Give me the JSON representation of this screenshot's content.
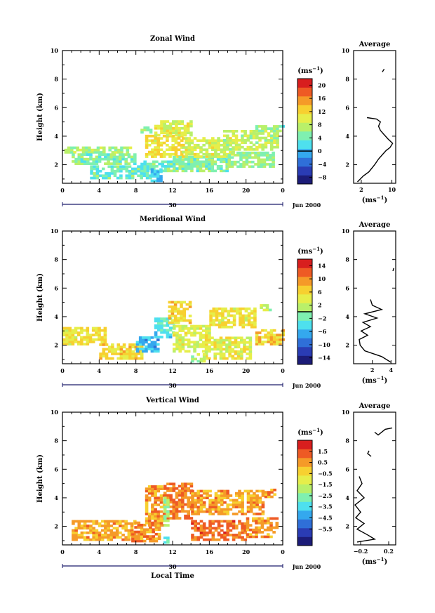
{
  "colors": {
    "scale": [
      "#1c1c78",
      "#2a3cb4",
      "#2f6fd8",
      "#34a8ee",
      "#4ee0ee",
      "#7ff0b0",
      "#b9f06a",
      "#e6ee4a",
      "#f7d030",
      "#f59a28",
      "#ee5a24",
      "#d81e1e"
    ]
  },
  "chart_data": [
    {
      "type": "heatmap",
      "title": "Zonal Wind",
      "xlabel": "",
      "ylabel": "Height (km)",
      "xlim": [
        0,
        24
      ],
      "ylim": [
        0.7,
        10
      ],
      "xticks": [
        "0",
        "4",
        "8",
        "12",
        "16",
        "20",
        "0"
      ],
      "yticks": [
        "2",
        "4",
        "6",
        "8",
        "10"
      ],
      "date_axis": {
        "day_label": "30",
        "month_label": "Jun 2000"
      },
      "colorbar": {
        "unit": "(ms",
        "unit_exp": "−1",
        "unit_close": ")",
        "range": [
          -10,
          22
        ],
        "ticks": [
          "20",
          "16",
          "12",
          "8",
          "4",
          "0",
          "−4",
          "−8"
        ],
        "ref_value": 0
      },
      "field_patches": [
        {
          "t0": 0.2,
          "t1": 7.5,
          "h0": 2.8,
          "h1": 3.2,
          "v": 7
        },
        {
          "t0": 1.0,
          "t1": 8.0,
          "h0": 2.0,
          "h1": 2.7,
          "v": 5
        },
        {
          "t0": 3.0,
          "t1": 9.5,
          "h0": 1.0,
          "h1": 1.8,
          "v": 4
        },
        {
          "t0": 8.5,
          "t1": 12.0,
          "h0": 1.5,
          "h1": 2.3,
          "v": 4
        },
        {
          "t0": 9.6,
          "t1": 10.8,
          "h0": 0.8,
          "h1": 1.6,
          "v": 1
        },
        {
          "t0": 9.0,
          "t1": 13.0,
          "h0": 2.5,
          "h1": 4.0,
          "v": 11
        },
        {
          "t0": 10.0,
          "t1": 14.0,
          "h0": 4.0,
          "h1": 5.0,
          "v": 9
        },
        {
          "t0": 12.0,
          "t1": 18.0,
          "h0": 1.5,
          "h1": 2.6,
          "v": 5
        },
        {
          "t0": 13.0,
          "t1": 18.5,
          "h0": 2.5,
          "h1": 3.8,
          "v": 9
        },
        {
          "t0": 17.5,
          "t1": 23.5,
          "h0": 3.0,
          "h1": 4.4,
          "v": 8
        },
        {
          "t0": 18.0,
          "t1": 23.0,
          "h0": 1.8,
          "h1": 2.8,
          "v": 6
        },
        {
          "t0": 21.0,
          "t1": 24.0,
          "h0": 4.3,
          "h1": 4.7,
          "v": 5
        },
        {
          "t0": 8.5,
          "t1": 9.5,
          "h0": 4.2,
          "h1": 4.6,
          "v": 6
        }
      ],
      "profile": {
        "title": "Average",
        "xlabel": "(ms",
        "xlabel_exp": "−1",
        "xlabel_close": ")",
        "xlim": [
          0,
          11
        ],
        "xticks": [
          "2",
          "10"
        ],
        "xtick_values": [
          2,
          10
        ],
        "segments": [
          [
            [
              1.0,
              0.8
            ],
            [
              2.5,
              1.2
            ],
            [
              4.0,
              1.5
            ],
            [
              5.5,
              2.0
            ],
            [
              6.5,
              2.4
            ],
            [
              7.5,
              2.7
            ],
            [
              8.5,
              3.0
            ],
            [
              9.5,
              3.2
            ],
            [
              10.2,
              3.5
            ],
            [
              9.0,
              3.8
            ],
            [
              8.0,
              4.1
            ],
            [
              7.0,
              4.4
            ],
            [
              6.5,
              4.7
            ],
            [
              7.0,
              5.0
            ],
            [
              6.0,
              5.2
            ],
            [
              3.5,
              5.3
            ]
          ],
          [
            [
              7.5,
              8.5
            ],
            [
              8.0,
              8.7
            ]
          ]
        ]
      }
    },
    {
      "type": "heatmap",
      "title": "Meridional Wind",
      "xlabel": "",
      "ylabel": "Height (km)",
      "xlim": [
        0,
        24
      ],
      "ylim": [
        0.7,
        10
      ],
      "xticks": [
        "0",
        "4",
        "8",
        "12",
        "16",
        "20",
        "0"
      ],
      "yticks": [
        "2",
        "4",
        "6",
        "8",
        "10"
      ],
      "date_axis": {
        "day_label": "30",
        "month_label": "Jun 2000"
      },
      "colorbar": {
        "unit": "(ms",
        "unit_exp": "−1",
        "unit_close": ")",
        "range": [
          -16,
          16
        ],
        "ticks": [
          "14",
          "10",
          "6",
          "2",
          "−2",
          "−6",
          "−10",
          "−14"
        ],
        "ref_value": 0
      },
      "field_patches": [
        {
          "t0": 0.0,
          "t1": 4.5,
          "h0": 2.0,
          "h1": 3.2,
          "v": 5
        },
        {
          "t0": 4.0,
          "t1": 8.5,
          "h0": 1.0,
          "h1": 2.0,
          "v": 6
        },
        {
          "t0": 8.0,
          "t1": 10.5,
          "h0": 1.5,
          "h1": 2.6,
          "v": -6
        },
        {
          "t0": 10.0,
          "t1": 12.0,
          "h0": 2.5,
          "h1": 3.8,
          "v": -3
        },
        {
          "t0": 11.5,
          "t1": 14.0,
          "h0": 3.5,
          "h1": 5.0,
          "v": 6
        },
        {
          "t0": 12.0,
          "t1": 16.0,
          "h0": 1.5,
          "h1": 3.3,
          "v": 3
        },
        {
          "t0": 16.0,
          "t1": 21.0,
          "h0": 3.2,
          "h1": 4.6,
          "v": 5
        },
        {
          "t0": 15.5,
          "t1": 20.5,
          "h0": 1.0,
          "h1": 2.6,
          "v": 4
        },
        {
          "t0": 21.0,
          "t1": 24.0,
          "h0": 2.0,
          "h1": 3.0,
          "v": 6
        },
        {
          "t0": 14.0,
          "t1": 15.5,
          "h0": 0.8,
          "h1": 1.4,
          "v": 1
        },
        {
          "t0": 21.5,
          "t1": 22.5,
          "h0": 4.4,
          "h1": 4.8,
          "v": 1
        }
      ],
      "profile": {
        "title": "Average",
        "xlabel": "(ms",
        "xlabel_exp": "−1",
        "xlabel_close": ")",
        "xlim": [
          0,
          4.5
        ],
        "xticks": [
          "2",
          "4"
        ],
        "xtick_values": [
          2,
          4
        ],
        "segments": [
          [
            [
              4.0,
              0.8
            ],
            [
              3.0,
              1.2
            ],
            [
              1.2,
              1.6
            ],
            [
              0.7,
              2.0
            ],
            [
              0.6,
              2.4
            ],
            [
              1.5,
              2.7
            ],
            [
              0.8,
              3.0
            ],
            [
              1.8,
              3.3
            ],
            [
              1.0,
              3.6
            ],
            [
              2.5,
              3.9
            ],
            [
              1.2,
              4.2
            ],
            [
              3.0,
              4.5
            ],
            [
              2.0,
              4.8
            ],
            [
              1.8,
              5.2
            ]
          ],
          [
            [
              4.2,
              7.2
            ],
            [
              4.3,
              7.4
            ]
          ]
        ]
      }
    },
    {
      "type": "heatmap",
      "title": "Vertical Wind",
      "xlabel": "Local Time",
      "ylabel": "Height (km)",
      "xlim": [
        0,
        24
      ],
      "ylim": [
        0.7,
        10
      ],
      "xticks": [
        "0",
        "4",
        "8",
        "12",
        "16",
        "20",
        "0"
      ],
      "yticks": [
        "2",
        "4",
        "6",
        "8",
        "10"
      ],
      "date_axis": {
        "day_label": "30",
        "month_label": "Jun 2000"
      },
      "colorbar": {
        "unit": "(ms",
        "unit_exp": "−1",
        "unit_close": ")",
        "range": [
          -7,
          2.5
        ],
        "ticks": [
          "1.5",
          "0.5",
          "−0.5",
          "−1.5",
          "−2.5",
          "−3.5",
          "−4.5",
          "−5.5"
        ],
        "ref_value": null
      },
      "field_patches": [
        {
          "t0": 1.0,
          "t1": 8.0,
          "h0": 1.0,
          "h1": 2.4,
          "v": 0.3
        },
        {
          "t0": 7.5,
          "t1": 10.5,
          "h0": 0.9,
          "h1": 2.2,
          "v": 0.6
        },
        {
          "t0": 9.0,
          "t1": 11.0,
          "h0": 2.0,
          "h1": 4.8,
          "v": 0.5
        },
        {
          "t0": 11.0,
          "t1": 14.0,
          "h0": 2.5,
          "h1": 5.0,
          "v": 0.9
        },
        {
          "t0": 11.0,
          "t1": 11.6,
          "h0": 2.0,
          "h1": 4.0,
          "v": -2.5
        },
        {
          "t0": 14.0,
          "t1": 20.0,
          "h0": 1.0,
          "h1": 2.4,
          "v": 1.0
        },
        {
          "t0": 14.0,
          "t1": 22.0,
          "h0": 2.8,
          "h1": 4.5,
          "v": 0.4
        },
        {
          "t0": 20.0,
          "t1": 23.5,
          "h0": 1.2,
          "h1": 2.5,
          "v": 0.6
        },
        {
          "t0": 22.0,
          "t1": 23.0,
          "h0": 4.0,
          "h1": 4.6,
          "v": 0.4
        },
        {
          "t0": 11.0,
          "t1": 11.6,
          "h0": 0.8,
          "h1": 1.2,
          "v": -3.0
        }
      ],
      "profile": {
        "title": "Average",
        "xlabel": "(ms",
        "xlabel_exp": "−1",
        "xlabel_close": ")",
        "xlim": [
          -0.3,
          0.3
        ],
        "xticks": [
          "−0.2",
          "0.2"
        ],
        "xtick_values": [
          -0.2,
          0.2
        ],
        "segments": [
          [
            [
              -0.25,
              0.9
            ],
            [
              0.0,
              1.1
            ],
            [
              -0.1,
              1.4
            ],
            [
              -0.25,
              1.8
            ],
            [
              -0.15,
              2.2
            ],
            [
              -0.27,
              2.6
            ],
            [
              -0.2,
              3.0
            ],
            [
              -0.28,
              3.5
            ],
            [
              -0.15,
              4.0
            ],
            [
              -0.25,
              4.5
            ],
            [
              -0.18,
              5.0
            ],
            [
              -0.22,
              5.5
            ]
          ],
          [
            [
              -0.05,
              6.9
            ],
            [
              -0.1,
              7.1
            ],
            [
              -0.08,
              7.3
            ]
          ],
          [
            [
              0.0,
              8.6
            ],
            [
              0.05,
              8.4
            ],
            [
              0.15,
              8.8
            ],
            [
              0.25,
              8.9
            ]
          ]
        ]
      }
    }
  ]
}
